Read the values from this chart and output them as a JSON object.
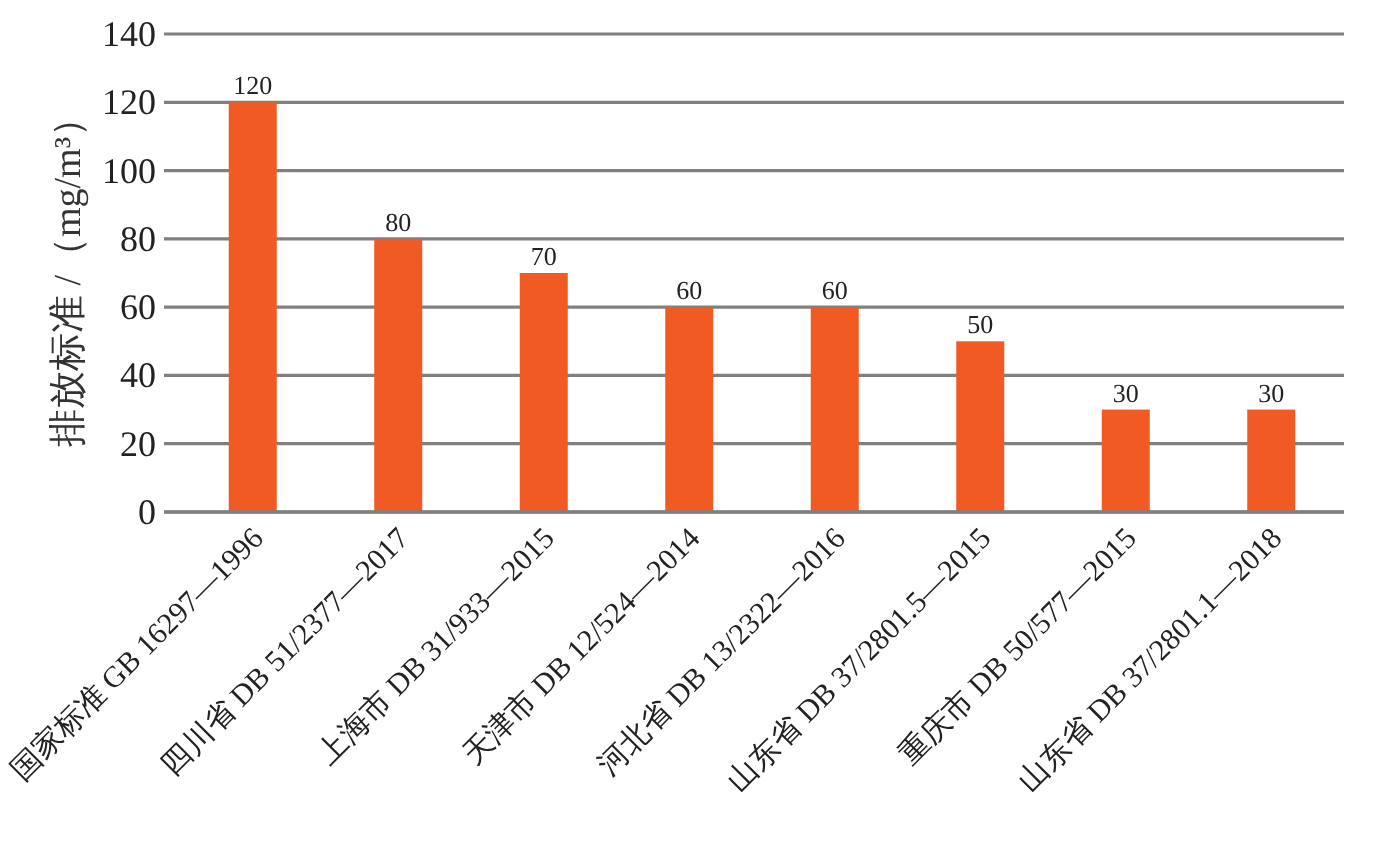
{
  "chart_data": {
    "type": "bar",
    "ylabel": "排放标准 /（mg/m³）",
    "categories": [
      "国家标准 GB 16297—1996",
      "四川省 DB 51/2377—2017",
      "上海市 DB 31/933—2015",
      "天津市 DB 12/524—2014",
      "河北省 DB 13/2322—2016",
      "山东省 DB 37/2801.5—2015",
      "重庆市 DB 50/577—2015",
      "山东省 DB 37/2801.1—2018"
    ],
    "values": [
      120,
      80,
      70,
      60,
      60,
      50,
      30,
      30
    ],
    "color": "#f15a22",
    "ylim": [
      0,
      140
    ],
    "yticks": [
      0,
      20,
      40,
      60,
      80,
      100,
      120,
      140
    ],
    "grid": "y",
    "data_labels": true
  }
}
